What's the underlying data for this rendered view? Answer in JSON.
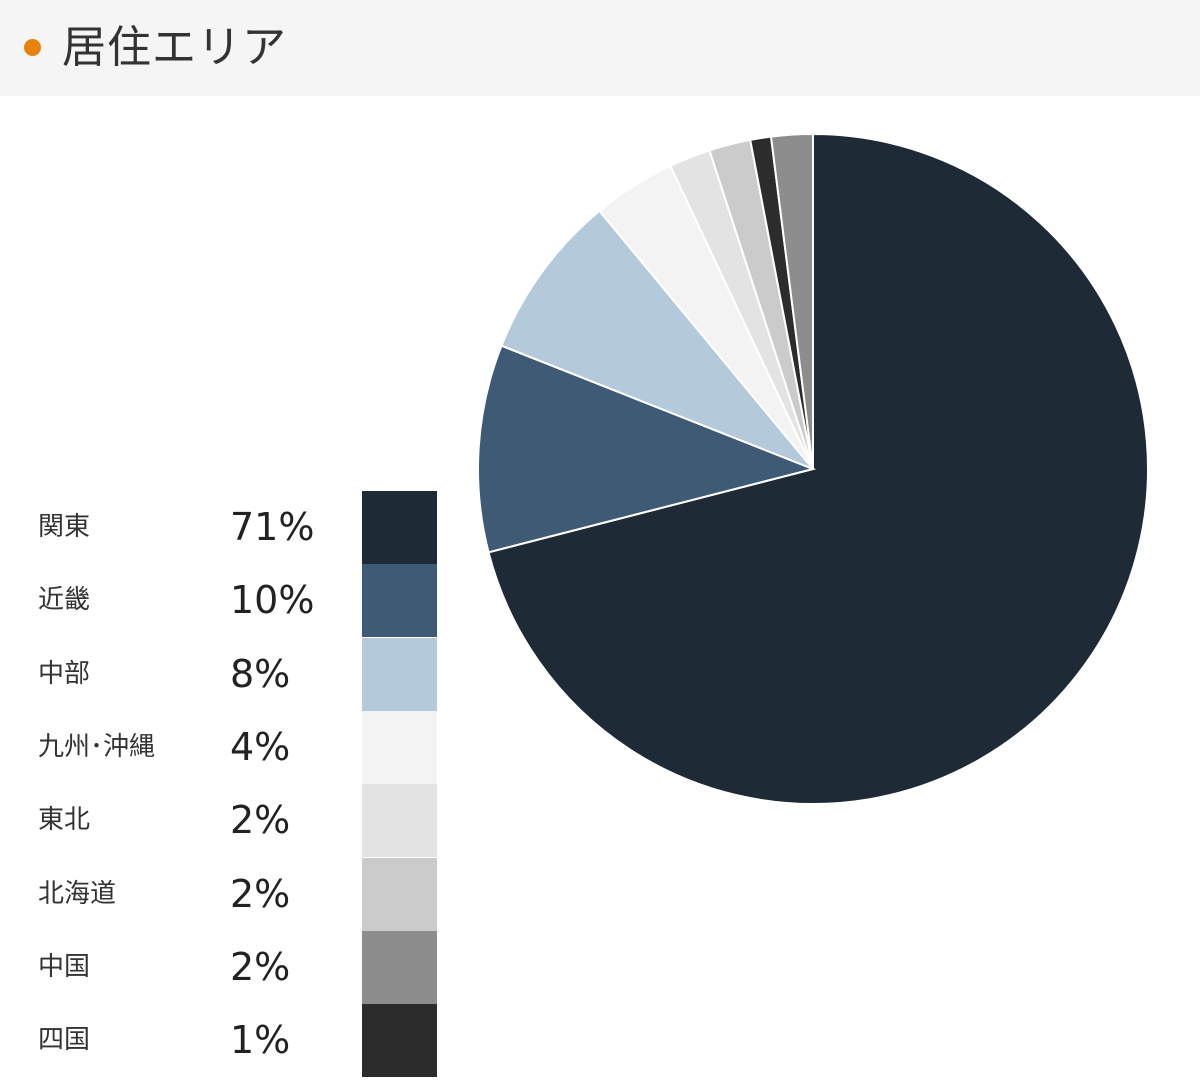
{
  "header": {
    "title": "居住エリア",
    "accent_color": "#e8820c"
  },
  "chart_data": {
    "type": "pie",
    "categories": [
      "関東",
      "近畿",
      "中部",
      "九州･沖縄",
      "東北",
      "北海道",
      "中国",
      "四国"
    ],
    "values": [
      71,
      10,
      8,
      4,
      2,
      2,
      2,
      1
    ],
    "value_labels": [
      "71%",
      "10%",
      "8%",
      "4%",
      "2%",
      "2%",
      "2%",
      "1%"
    ],
    "colors": [
      "#1f2a37",
      "#3f5a74",
      "#b4c9d9",
      "#f3f3f3",
      "#e3e3e3",
      "#cbcbcb",
      "#8d8d8d",
      "#2c2c2c"
    ],
    "title": "",
    "legend_position": "left",
    "direction": "clockwise from top; final slices 四国 then 中国"
  }
}
